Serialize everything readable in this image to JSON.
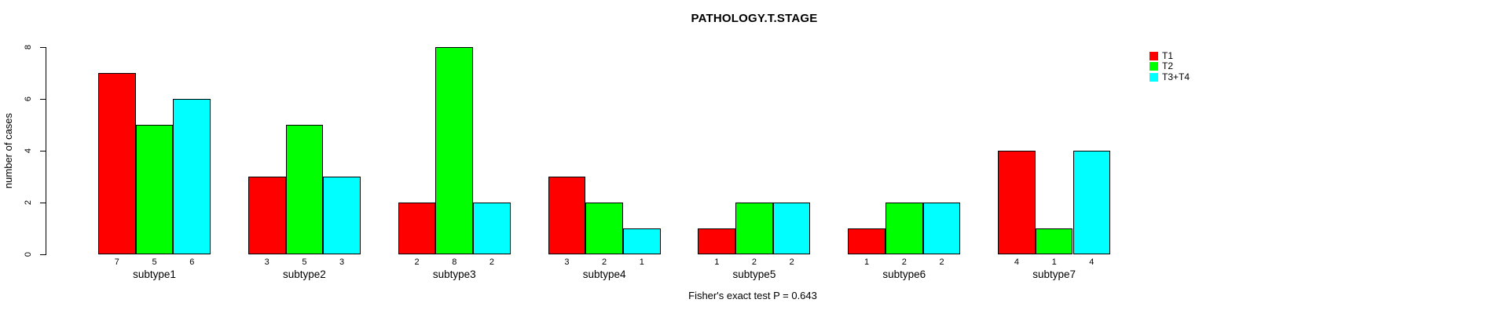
{
  "chart_data": {
    "type": "bar",
    "title": "PATHOLOGY.T.STAGE",
    "ylabel": "number of cases",
    "xlabel": "",
    "categories": [
      "subtype1",
      "subtype2",
      "subtype3",
      "subtype4",
      "subtype5",
      "subtype6",
      "subtype7"
    ],
    "series": [
      {
        "name": "T1",
        "color": "#ff0000",
        "values": [
          7,
          3,
          2,
          3,
          1,
          1,
          4
        ]
      },
      {
        "name": "T2",
        "color": "#00ff00",
        "values": [
          5,
          5,
          8,
          2,
          2,
          2,
          1
        ]
      },
      {
        "name": "T3+T4",
        "color": "#00ffff",
        "values": [
          6,
          3,
          2,
          1,
          2,
          2,
          4
        ]
      }
    ],
    "yticks": [
      0,
      2,
      4,
      6,
      8
    ],
    "ylim": [
      0,
      8
    ],
    "grid": false,
    "legend_position": "top-right",
    "bar_border_color": "#000000",
    "annotation": "Fisher's exact test P = 0.643"
  }
}
